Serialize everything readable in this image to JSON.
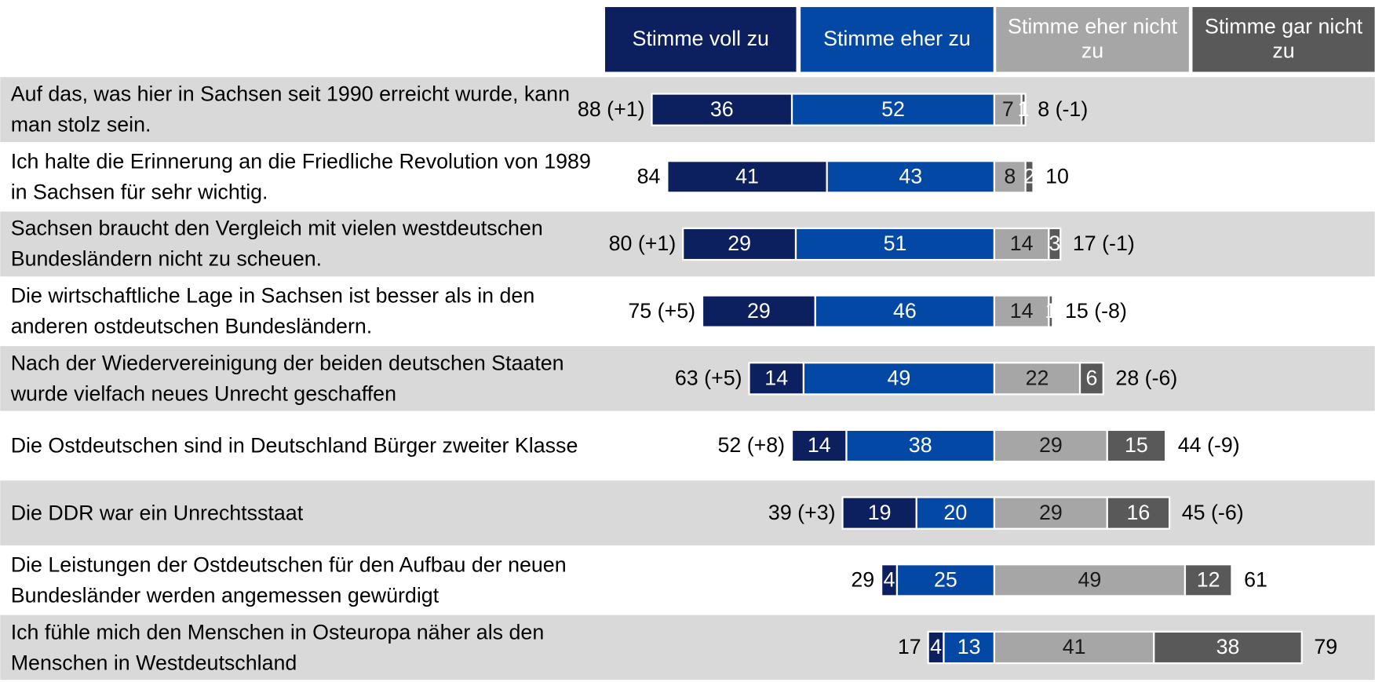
{
  "chart_data": {
    "type": "diverging-stacked-bar",
    "categories": [
      "Auf das, was hier in Sachsen seit 1990 erreicht wurde, kann man stolz sein.",
      "Ich halte die Erinnerung an die Friedliche Revolution von 1989 in Sachsen für sehr wichtig.",
      "Sachsen braucht den Vergleich mit vielen westdeutschen Bundesländern nicht zu scheuen.",
      "Die wirtschaftliche Lage in Sachsen ist besser als in den anderen ostdeutschen Bundesländern.",
      "Nach der Wiedervereinigung der beiden deutschen Staaten wurde vielfach neues Unrecht geschaffen",
      "Die Ostdeutschen sind in Deutschland Bürger zweiter Klasse",
      "Die DDR war ein Unrechtsstaat",
      "Die Leistungen der Ostdeutschen für den Aufbau der neuen Bundesländer werden angemessen gewürdigt",
      "Ich fühle mich den Menschen in Osteuropa näher als den Menschen in Westdeutschland"
    ],
    "series": [
      {
        "name": "Stimme voll zu",
        "color": "#0c1f5e",
        "text_color": "#ffffff",
        "values": [
          36,
          41,
          29,
          29,
          14,
          14,
          19,
          4,
          4
        ]
      },
      {
        "name": "Stimme eher zu",
        "color": "#0348a4",
        "text_color": "#ffffff",
        "values": [
          52,
          43,
          51,
          46,
          49,
          38,
          20,
          25,
          13
        ]
      },
      {
        "name": "Stimme eher nicht zu",
        "color": "#a6a6a6",
        "text_color": "#1a1a1a",
        "values": [
          7,
          8,
          14,
          14,
          22,
          29,
          29,
          49,
          41
        ]
      },
      {
        "name": "Stimme gar nicht zu",
        "color": "#595959",
        "text_color": "#ffffff",
        "values": [
          1,
          2,
          3,
          1,
          6,
          15,
          16,
          12,
          38
        ]
      }
    ],
    "agree_labels": [
      "88 (+1)",
      "84",
      "80 (+1)",
      "75 (+5)",
      "63 (+5)",
      "52 (+8)",
      "39 (+3)",
      "29",
      "17"
    ],
    "disagree_labels": [
      "8 (-1)",
      "10",
      "17 (-1)",
      "15 (-8)",
      "28 (-6)",
      "44 (-9)",
      "45 (-6)",
      "61",
      "79"
    ],
    "row_shading": "#d9d9d9"
  }
}
